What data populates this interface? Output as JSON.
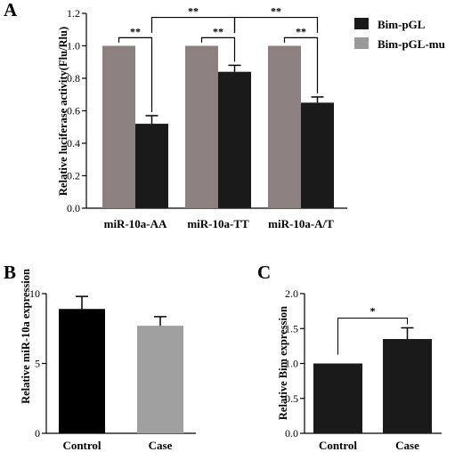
{
  "colors": {
    "dark": "#1a1a1a",
    "light": "#999999",
    "mu": "#8c8080",
    "axis": "#000000"
  },
  "chart_data": [
    {
      "panel": "A",
      "type": "bar",
      "categories": [
        "miR-10a-AA",
        "miR-10a-TT",
        "miR-10a-A/T"
      ],
      "ylabel": "Relative luciferase activity(Flu/Rlu)",
      "ylim": [
        0,
        1.2
      ],
      "yticks": [
        "0.0",
        "0.2",
        "0.4",
        "0.6",
        "0.8",
        "1.0",
        "1.2"
      ],
      "legend_position": "top-right",
      "series": [
        {
          "name": "Bim-pGL-mu",
          "color": "#8c8080",
          "values": [
            1.0,
            1.0,
            1.0
          ],
          "errors": [
            0,
            0,
            0
          ]
        },
        {
          "name": "Bim-pGL",
          "color": "#1a1a1a",
          "values": [
            0.52,
            0.84,
            0.65
          ],
          "errors": [
            0.05,
            0.04,
            0.035
          ]
        }
      ],
      "significance": [
        {
          "label": "**",
          "scope": "within miR-10a-AA"
        },
        {
          "label": "**",
          "scope": "within miR-10a-TT"
        },
        {
          "label": "**",
          "scope": "within miR-10a-A/T"
        },
        {
          "label": "**",
          "scope": "miR-10a-AA vs miR-10a-TT"
        },
        {
          "label": "**",
          "scope": "miR-10a-TT vs miR-10a-A/T"
        }
      ]
    },
    {
      "panel": "B",
      "type": "bar",
      "categories": [
        "Control",
        "Case"
      ],
      "ylabel": "Relative miR-10a expression",
      "ylim": [
        0,
        10
      ],
      "yticks": [
        "0",
        "5",
        "10"
      ],
      "values": [
        8.9,
        7.7
      ],
      "errors": [
        0.9,
        0.65
      ],
      "colors": [
        "#000000",
        "#a0a0a0"
      ]
    },
    {
      "panel": "C",
      "type": "bar",
      "categories": [
        "Control",
        "Case"
      ],
      "ylabel": "Relative Bim expression",
      "ylim": [
        0,
        2.0
      ],
      "yticks": [
        "0.0",
        "0.5",
        "1.0",
        "1.5",
        "2.0"
      ],
      "values": [
        1.0,
        1.35
      ],
      "errors": [
        0,
        0.16
      ],
      "colors": [
        "#1a1a1a",
        "#1a1a1a"
      ],
      "significance": [
        {
          "label": "*",
          "scope": "Control vs Case"
        }
      ]
    }
  ]
}
